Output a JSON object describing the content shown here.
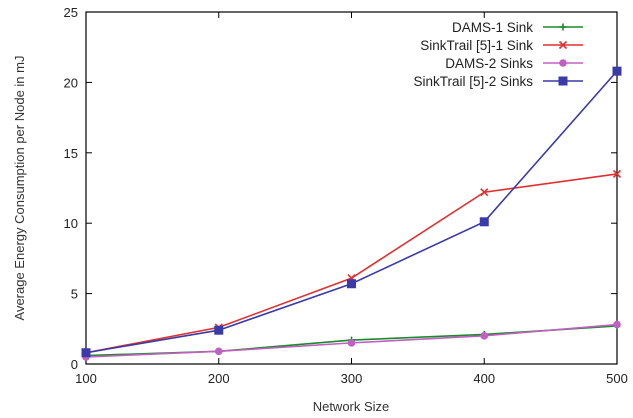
{
  "chart_data": {
    "type": "line",
    "title": "",
    "xlabel": "Network Size",
    "ylabel": "Average Energy Consumption per Node in mJ",
    "x": [
      100,
      200,
      300,
      400,
      500
    ],
    "xlim": [
      100,
      500
    ],
    "ylim": [
      0,
      25
    ],
    "xticks": [
      "100",
      "200",
      "300",
      "400",
      "500"
    ],
    "yticks": [
      "0",
      "5",
      "10",
      "15",
      "20",
      "25"
    ],
    "grid": false,
    "legend_position": "top-right",
    "series": [
      {
        "name": "DAMS-1 Sink",
        "color": "#1a8a2a",
        "marker": "plus",
        "values": [
          0.6,
          0.9,
          1.7,
          2.1,
          2.7
        ]
      },
      {
        "name": "SinkTrail [5]-1 Sink",
        "color": "#e03030",
        "marker": "x",
        "values": [
          0.8,
          2.6,
          6.1,
          12.2,
          13.5
        ]
      },
      {
        "name": "DAMS-2 Sinks",
        "color": "#c060c0",
        "marker": "circle",
        "values": [
          0.5,
          0.9,
          1.5,
          2.0,
          2.8
        ]
      },
      {
        "name": "SinkTrail [5]-2 Sinks",
        "color": "#3a3aa8",
        "marker": "square",
        "values": [
          0.8,
          2.4,
          5.7,
          10.1,
          20.8
        ]
      }
    ]
  }
}
